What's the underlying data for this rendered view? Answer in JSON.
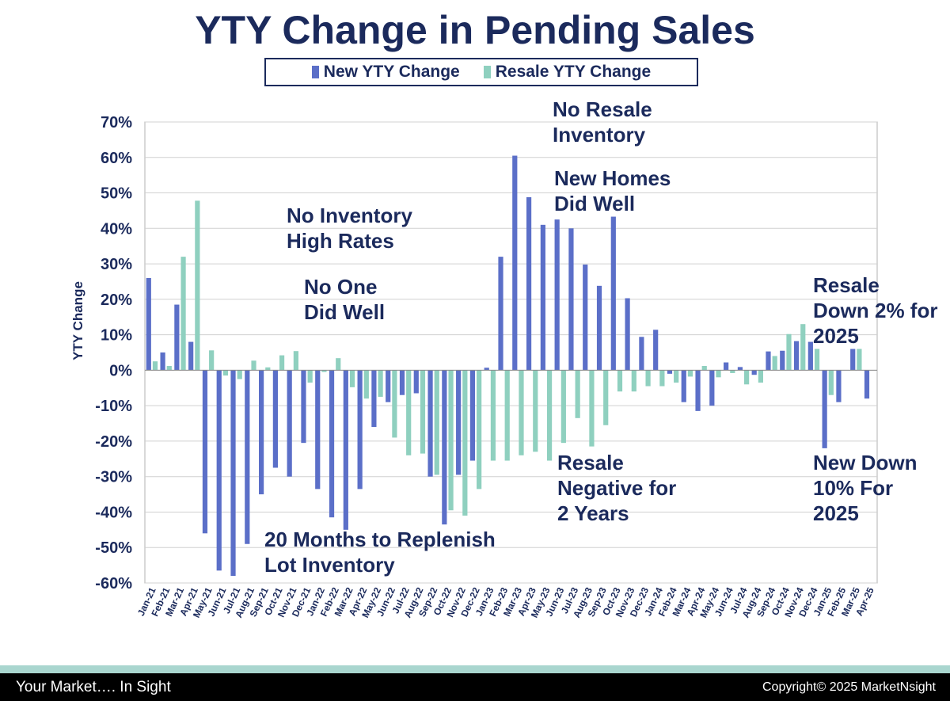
{
  "chart_data": {
    "type": "bar",
    "title": "YTY Change in Pending Sales",
    "ylabel": "YTY Change",
    "xlabel": "",
    "ylim": [
      -60,
      70
    ],
    "yticks": [
      "70%",
      "60%",
      "50%",
      "40%",
      "30%",
      "20%",
      "10%",
      "0%",
      "-10%",
      "-20%",
      "-30%",
      "-40%",
      "-50%",
      "-60%"
    ],
    "grid": true,
    "legend_position": "top-center",
    "categories": [
      "Jan-21",
      "Feb-21",
      "Mar-21",
      "Apr-21",
      "May-21",
      "Jun-21",
      "Jul-21",
      "Aug-21",
      "Sep-21",
      "Oct-21",
      "Nov-21",
      "Dec-21",
      "Jan-22",
      "Feb-22",
      "Mar-22",
      "Apr-22",
      "May-22",
      "Jun-22",
      "Jul-22",
      "Aug-22",
      "Sep-22",
      "Oct-22",
      "Nov-22",
      "Dec-22",
      "Jan-23",
      "Feb-23",
      "Mar-23",
      "Apr-23",
      "May-23",
      "Jun-23",
      "Jul-23",
      "Aug-23",
      "Sep-23",
      "Oct-23",
      "Nov-23",
      "Dec-23",
      "Jan-24",
      "Feb-24",
      "Mar-24",
      "Apr-24",
      "May-24",
      "Jun-24",
      "Jul-24",
      "Aug-24",
      "Sep-24",
      "Oct-24",
      "Nov-24",
      "Dec-24",
      "Jan-25",
      "Feb-25",
      "Mar-25",
      "Apr-25"
    ],
    "series": [
      {
        "name": "New YTY Change",
        "color": "#5b6fc8",
        "values": [
          26,
          5,
          18.5,
          8,
          -46,
          -56.5,
          -58,
          -49,
          -35,
          -27.5,
          -30,
          -20.5,
          -33.5,
          -41.5,
          -45,
          -33.5,
          -16,
          -9,
          -7,
          -6.5,
          -30,
          -43.5,
          -29.5,
          -25.5,
          0.7,
          32,
          60.5,
          48.8,
          41,
          42.5,
          40,
          29.8,
          23.8,
          43.3,
          20.3,
          9.4,
          11.4,
          -1,
          -9,
          -11.5,
          -10,
          2.2,
          0.9,
          -1.3,
          5.3,
          5.5,
          8.2,
          8,
          -22,
          -9,
          6,
          -8
        ]
      },
      {
        "name": "Resale YTY Change",
        "color": "#8fd0bf",
        "values": [
          2.5,
          1.2,
          32,
          47.8,
          5.6,
          -1.5,
          -2.5,
          2.7,
          0.8,
          4.2,
          5.4,
          -3.5,
          -0.5,
          3.4,
          -4.8,
          -8,
          -7.5,
          -19,
          -24,
          -23.5,
          -29.5,
          -39.5,
          -41,
          -33.5,
          -25.5,
          -25.5,
          -24,
          -23,
          -25.5,
          -20.5,
          -13.5,
          -21.5,
          -15.5,
          -6,
          -6,
          -4.5,
          -4.5,
          -3.5,
          -1.8,
          1.2,
          -2,
          -0.8,
          -4,
          -3.5,
          4,
          10.2,
          13,
          6,
          -7,
          0,
          6,
          0
        ]
      }
    ]
  },
  "legend": {
    "new_label": "New YTY Change",
    "resale_label": "Resale YTY Change"
  },
  "annotations": {
    "no_inventory": [
      "No Inventory",
      "High Rates"
    ],
    "no_one": [
      "No One",
      "Did Well"
    ],
    "months": [
      "20 Months to Replenish",
      "Lot Inventory"
    ],
    "no_resale": [
      "No Resale",
      "Inventory"
    ],
    "new_homes": [
      "New Homes",
      "Did Well"
    ],
    "resale_neg": [
      "Resale",
      "Negative for",
      "2 Years"
    ],
    "resale_down": [
      "Resale",
      "Down 2% for",
      "2025"
    ],
    "new_down": [
      "New Down",
      "10% For",
      "2025"
    ]
  },
  "footer": {
    "left": "Your Market…. In Sight",
    "right": "Copyright© 2025 MarketNsight"
  }
}
